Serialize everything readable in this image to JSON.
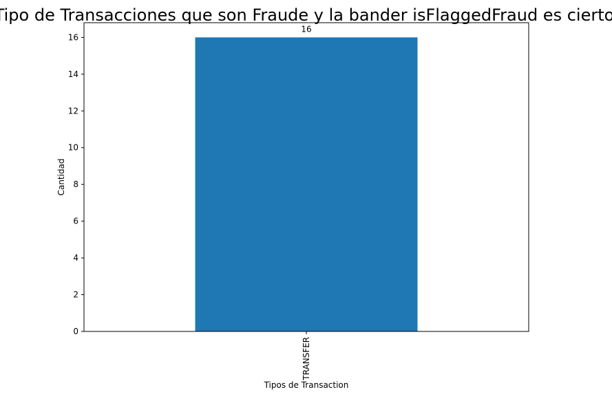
{
  "chart_data": {
    "type": "bar",
    "title": "Tipo de Transacciones que son Fraude y la bander isFlaggedFraud es cierto",
    "xlabel": "Tipos de Transaction",
    "ylabel": "Cantidad",
    "categories": [
      "TRANSFER"
    ],
    "values": [
      16
    ],
    "data_labels": [
      "16"
    ],
    "ylim": [
      0,
      16.8
    ],
    "yticks": [
      0,
      2,
      4,
      6,
      8,
      10,
      12,
      14,
      16
    ],
    "x_tick_rotation": 90,
    "grid": false,
    "legend": "none",
    "bar_color": "#1f77b4"
  }
}
